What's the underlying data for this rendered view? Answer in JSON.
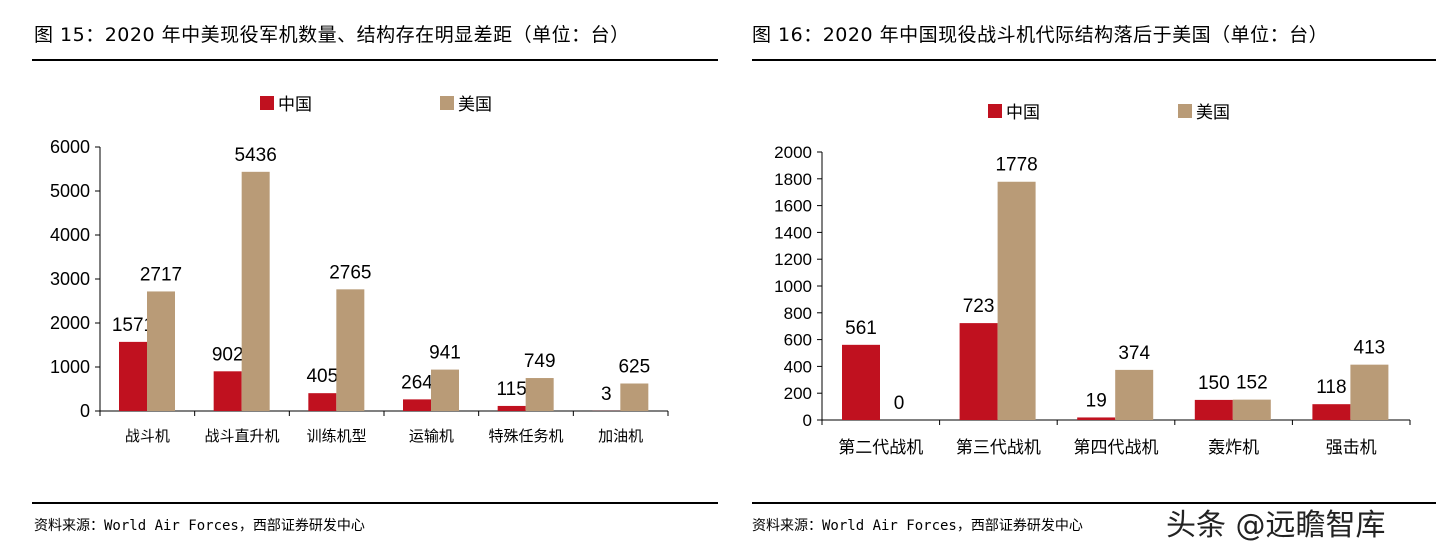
{
  "watermark": "头条 @远瞻智库",
  "colors": {
    "china": "#c0111f",
    "usa": "#b99b77"
  },
  "chart_data": [
    {
      "type": "bar",
      "title": "图 15：2020 年中美现役军机数量、结构存在明显差距（单位：台）",
      "source": "资料来源：World Air Forces，西部证券研发中心",
      "categories": [
        "战斗机",
        "战斗直升机",
        "训练机型",
        "运输机",
        "特殊任务机",
        "加油机"
      ],
      "series": [
        {
          "name": "中国",
          "values": [
            1571,
            902,
            405,
            264,
            115,
            3
          ]
        },
        {
          "name": "美国",
          "values": [
            2717,
            5436,
            2765,
            941,
            749,
            625
          ]
        }
      ],
      "ylim": [
        0,
        6000
      ],
      "yticks": [
        0,
        1000,
        2000,
        3000,
        4000,
        5000,
        6000
      ],
      "legend": "top",
      "grid": false
    },
    {
      "type": "bar",
      "title": "图 16：2020 年中国现役战斗机代际结构落后于美国（单位：台）",
      "source": "资料来源：World Air Forces，西部证券研发中心",
      "categories": [
        "第二代战机",
        "第三代战机",
        "第四代战机",
        "轰炸机",
        "强击机"
      ],
      "series": [
        {
          "name": "中国",
          "values": [
            561,
            723,
            19,
            150,
            118
          ]
        },
        {
          "name": "美国",
          "values": [
            0,
            1778,
            374,
            152,
            413
          ]
        }
      ],
      "ylim": [
        0,
        2000
      ],
      "yticks": [
        0,
        200,
        400,
        600,
        800,
        1000,
        1200,
        1400,
        1600,
        1800,
        2000
      ],
      "legend": "top",
      "grid": false
    }
  ]
}
